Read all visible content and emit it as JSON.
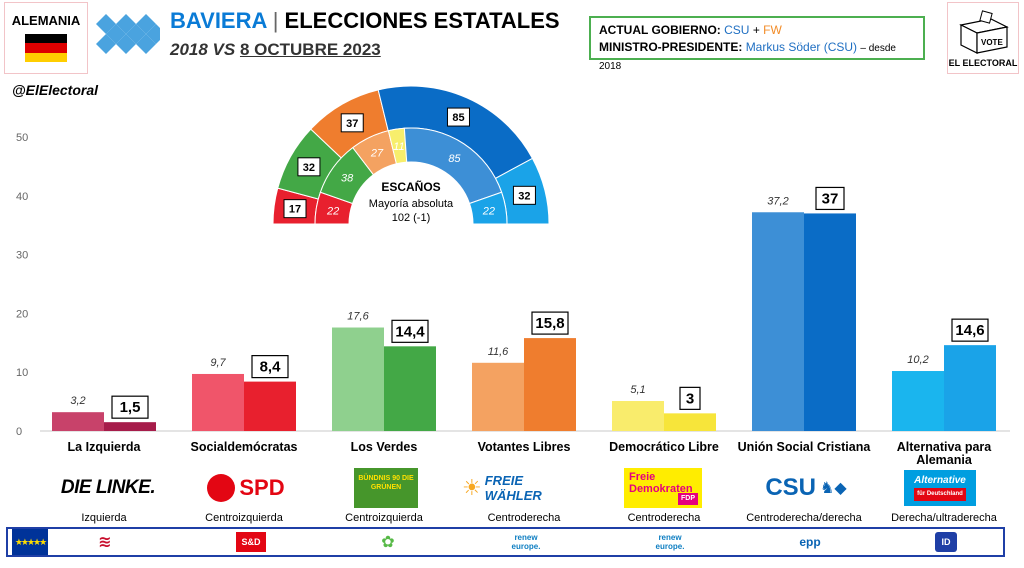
{
  "header": {
    "country": "ALEMANIA",
    "region": "BAVIERA",
    "separator": "|",
    "title": "ELECCIONES ESTATALES",
    "subtitle_prefix": "2018 VS",
    "subtitle_date": "8 OCTUBRE 2023",
    "flag_colors": [
      "#000000",
      "#dd0000",
      "#ffce00"
    ]
  },
  "government": {
    "label1": "ACTUAL GOBIERNO:",
    "party1": "CSU",
    "plus": "+",
    "party2": "FW",
    "label2": "MINISTRO-PRESIDENTE:",
    "president": "Markus Söder (CSU)",
    "since": "– desde 2018"
  },
  "brand": {
    "logo_text": "EL ELECTORAL",
    "vote_label": "VOTE",
    "handle": "@ElElectoral"
  },
  "seats": {
    "title": "ESCAÑOS",
    "majority_label": "Mayoría absoluta",
    "majority_value": "102 (-1)",
    "outer_2023": [
      17,
      32,
      37,
      85,
      32
    ],
    "outer_colors": [
      "#e8202e",
      "#43a846",
      "#ef7d2e",
      "#0a6cc6",
      "#1aa3e8"
    ],
    "inner_2018": [
      22,
      38,
      27,
      11,
      85,
      22
    ],
    "inner_colors": [
      "#e8202e",
      "#43a846",
      "#f4a261",
      "#f7ee6c",
      "#3d8fd6",
      "#1aa3e8"
    ]
  },
  "chart_data": {
    "type": "bar",
    "ylim": [
      0,
      50
    ],
    "yticks": [
      "0",
      "10",
      "20",
      "30",
      "40",
      "50"
    ],
    "categories": [
      "La Izquierda",
      "Socialdemócratas",
      "Los Verdes",
      "Votantes Libres",
      "Democrático Libre",
      "Unión Social Cristiana",
      "Alternativa para Alemania"
    ],
    "series": [
      {
        "values": [
          3.2,
          9.7,
          17.6,
          11.6,
          5.1,
          37.2,
          10.2
        ]
      },
      {
        "values": [
          1.5,
          8.4,
          14.4,
          15.8,
          3,
          37,
          14.6
        ]
      }
    ],
    "labels_2018": [
      "3,2",
      "9,7",
      "17,6",
      "11,6",
      "5,1",
      "37,2",
      "10,2"
    ],
    "labels_2023": [
      "1,5",
      "8,4",
      "14,4",
      "15,8",
      "3",
      "37",
      "14,6"
    ],
    "colors_2018": [
      "#c8426a",
      "#f0556a",
      "#8fd08e",
      "#f4a261",
      "#f9ec6c",
      "#3d8fd6",
      "#1ab5ee"
    ],
    "colors_2023": [
      "#a61c4a",
      "#e8202e",
      "#43a846",
      "#ef7d2e",
      "#f7e53a",
      "#0a6cc6",
      "#1aa3e8"
    ]
  },
  "ideology": [
    "Izquierda",
    "Centroizquierda",
    "Centroizquierda",
    "Centroderecha",
    "Centroderecha",
    "Centroderecha/derecha",
    "Derecha/ultraderecha"
  ],
  "party_logos": {
    "linke": "DIE LINKE.",
    "spd": "SPD",
    "gruene": "BÜNDNIS 90 DIE GRÜNEN",
    "fw": "FREIE WÄHLER",
    "fdp_line1": "Freie",
    "fdp_line2": "Demokraten",
    "fdp_tag": "FDP",
    "csu": "CSU",
    "afd_line1": "Alternative",
    "afd_tag": "für Deutschland"
  },
  "eu_groups": {
    "sd": "S&D",
    "renew1": "renew europe.",
    "renew2": "renew europe.",
    "epp": "epp",
    "id": "ID"
  }
}
